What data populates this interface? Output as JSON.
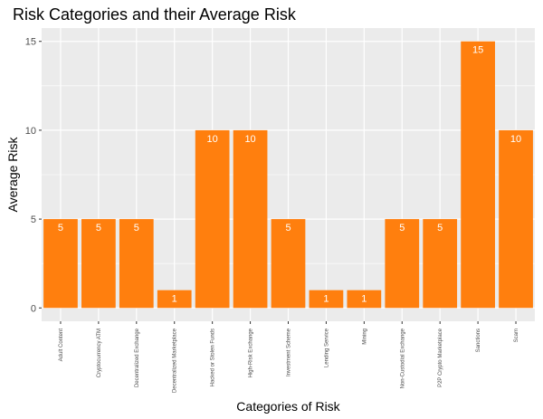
{
  "chart_data": {
    "type": "bar",
    "title": "Risk Categories and their Average Risk",
    "xlabel": "Categories of Risk",
    "ylabel": "Average Risk",
    "categories": [
      "Adult Content",
      "Cryptocurrency ATM",
      "Decentralized Exchange",
      "Decentralized Marketplace",
      "Hacked or Stolen Funds",
      "High-Risk Exchange",
      "Investment Scheme",
      "Lending Service",
      "Mining",
      "Non-Custodial Exchange",
      "P2P Crypto Marketplace",
      "Sanctions",
      "Scam"
    ],
    "values": [
      5,
      5,
      5,
      1,
      10,
      10,
      5,
      1,
      1,
      5,
      5,
      15,
      10
    ],
    "data_labels": [
      "5",
      "5",
      "5",
      "1",
      "10",
      "10",
      "5",
      "1",
      "1",
      "5",
      "5",
      "15",
      "10"
    ],
    "y_ticks": [
      0,
      5,
      10,
      15
    ],
    "y_tick_labels": [
      "0",
      "5",
      "10",
      "15"
    ],
    "ylim": [
      -0.75,
      15.75
    ],
    "grid": true,
    "legend": "none",
    "colors": {
      "bar": "#FF7F0E",
      "panel": "#EBEBEB",
      "grid": "#FFFFFF",
      "label_text": "#FFFFFF",
      "axis_text": "#4D4D4D",
      "title_text": "#000000"
    }
  }
}
